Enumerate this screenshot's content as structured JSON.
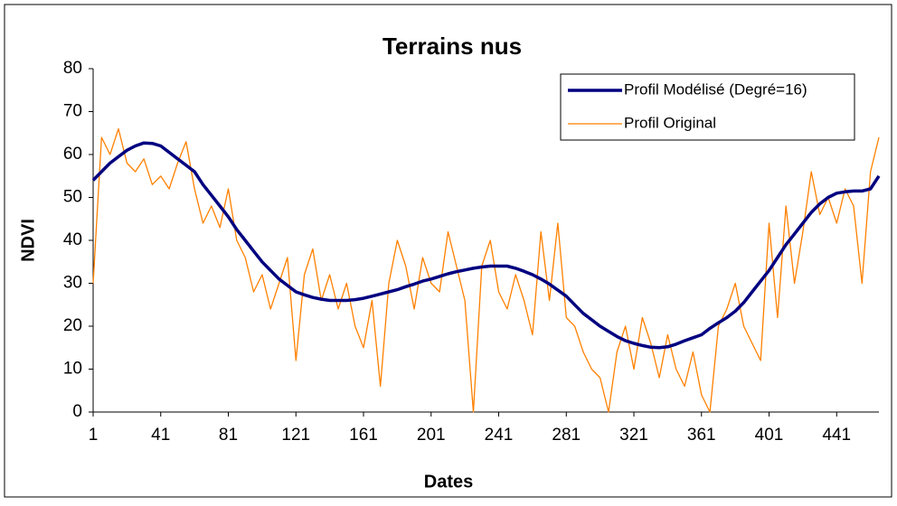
{
  "chart_data": {
    "type": "line",
    "title": "Terrains nus",
    "x_label": "Dates",
    "y_label": "NDVI",
    "x": [
      1,
      6,
      11,
      16,
      21,
      26,
      31,
      36,
      41,
      46,
      51,
      56,
      61,
      66,
      71,
      76,
      81,
      86,
      91,
      96,
      101,
      106,
      111,
      116,
      121,
      126,
      131,
      136,
      141,
      146,
      151,
      156,
      161,
      166,
      171,
      176,
      181,
      186,
      191,
      196,
      201,
      206,
      211,
      216,
      221,
      226,
      231,
      236,
      241,
      246,
      251,
      256,
      261,
      266,
      271,
      276,
      281,
      286,
      291,
      296,
      301,
      306,
      311,
      316,
      321,
      326,
      331,
      336,
      341,
      346,
      351,
      356,
      361,
      366,
      371,
      376,
      381,
      386,
      391,
      396,
      401,
      406,
      411,
      416,
      421,
      426,
      431,
      436,
      441,
      446,
      451,
      456,
      461,
      466
    ],
    "series": [
      {
        "name": "Profil Modélisé (Degré=16)",
        "color": "#000080",
        "width": 3.5,
        "values": [
          54,
          56,
          58,
          59.5,
          61,
          62,
          62.7,
          62.6,
          62,
          60.5,
          59,
          57.5,
          56,
          53,
          50.5,
          48,
          45.5,
          42.5,
          40,
          37.5,
          35,
          33,
          31,
          29.5,
          28,
          27.3,
          26.7,
          26.3,
          26,
          26,
          26,
          26.2,
          26.5,
          27,
          27.5,
          28,
          28.5,
          29.2,
          29.8,
          30.5,
          31,
          31.6,
          32.2,
          32.7,
          33.1,
          33.5,
          33.8,
          34,
          34,
          34,
          33.5,
          32.8,
          32,
          31,
          29.8,
          28.4,
          27,
          25,
          23,
          21.5,
          20,
          18.8,
          17.6,
          16.6,
          16,
          15.5,
          15.1,
          15,
          15.2,
          15.8,
          16.6,
          17.3,
          18,
          19.5,
          20.8,
          22,
          23.5,
          25.5,
          28,
          30.5,
          33,
          36,
          39,
          41.5,
          44,
          46.5,
          48.5,
          50,
          51,
          51.3,
          51.5,
          51.5,
          52,
          55
        ]
      },
      {
        "name": "Profil Original",
        "color": "#ff8000",
        "width": 1.3,
        "values": [
          30,
          64,
          60,
          66,
          58,
          56,
          59,
          53,
          55,
          52,
          58,
          63,
          52,
          44,
          48,
          43,
          52,
          40,
          36,
          28,
          32,
          24,
          30,
          36,
          12,
          32,
          38,
          26,
          32,
          24,
          30,
          20,
          15,
          26,
          6,
          30,
          40,
          34,
          24,
          36,
          30,
          28,
          42,
          34,
          26,
          0,
          34,
          40,
          28,
          24,
          32,
          26,
          18,
          42,
          26,
          44,
          22,
          20,
          14,
          10,
          8,
          0,
          14,
          20,
          10,
          22,
          16,
          8,
          18,
          10,
          6,
          14,
          4,
          0,
          20,
          24,
          30,
          20,
          16,
          12,
          44,
          22,
          48,
          30,
          42,
          56,
          46,
          50,
          44,
          52,
          48,
          30,
          56,
          64
        ]
      }
    ],
    "xlim": [
      1,
      466
    ],
    "ylim": [
      0,
      80
    ],
    "xticks": [
      1,
      41,
      81,
      121,
      161,
      201,
      241,
      281,
      321,
      361,
      401,
      441
    ],
    "yticks": [
      0,
      10,
      20,
      30,
      40,
      50,
      60,
      70,
      80
    ],
    "legend": "top-right"
  }
}
